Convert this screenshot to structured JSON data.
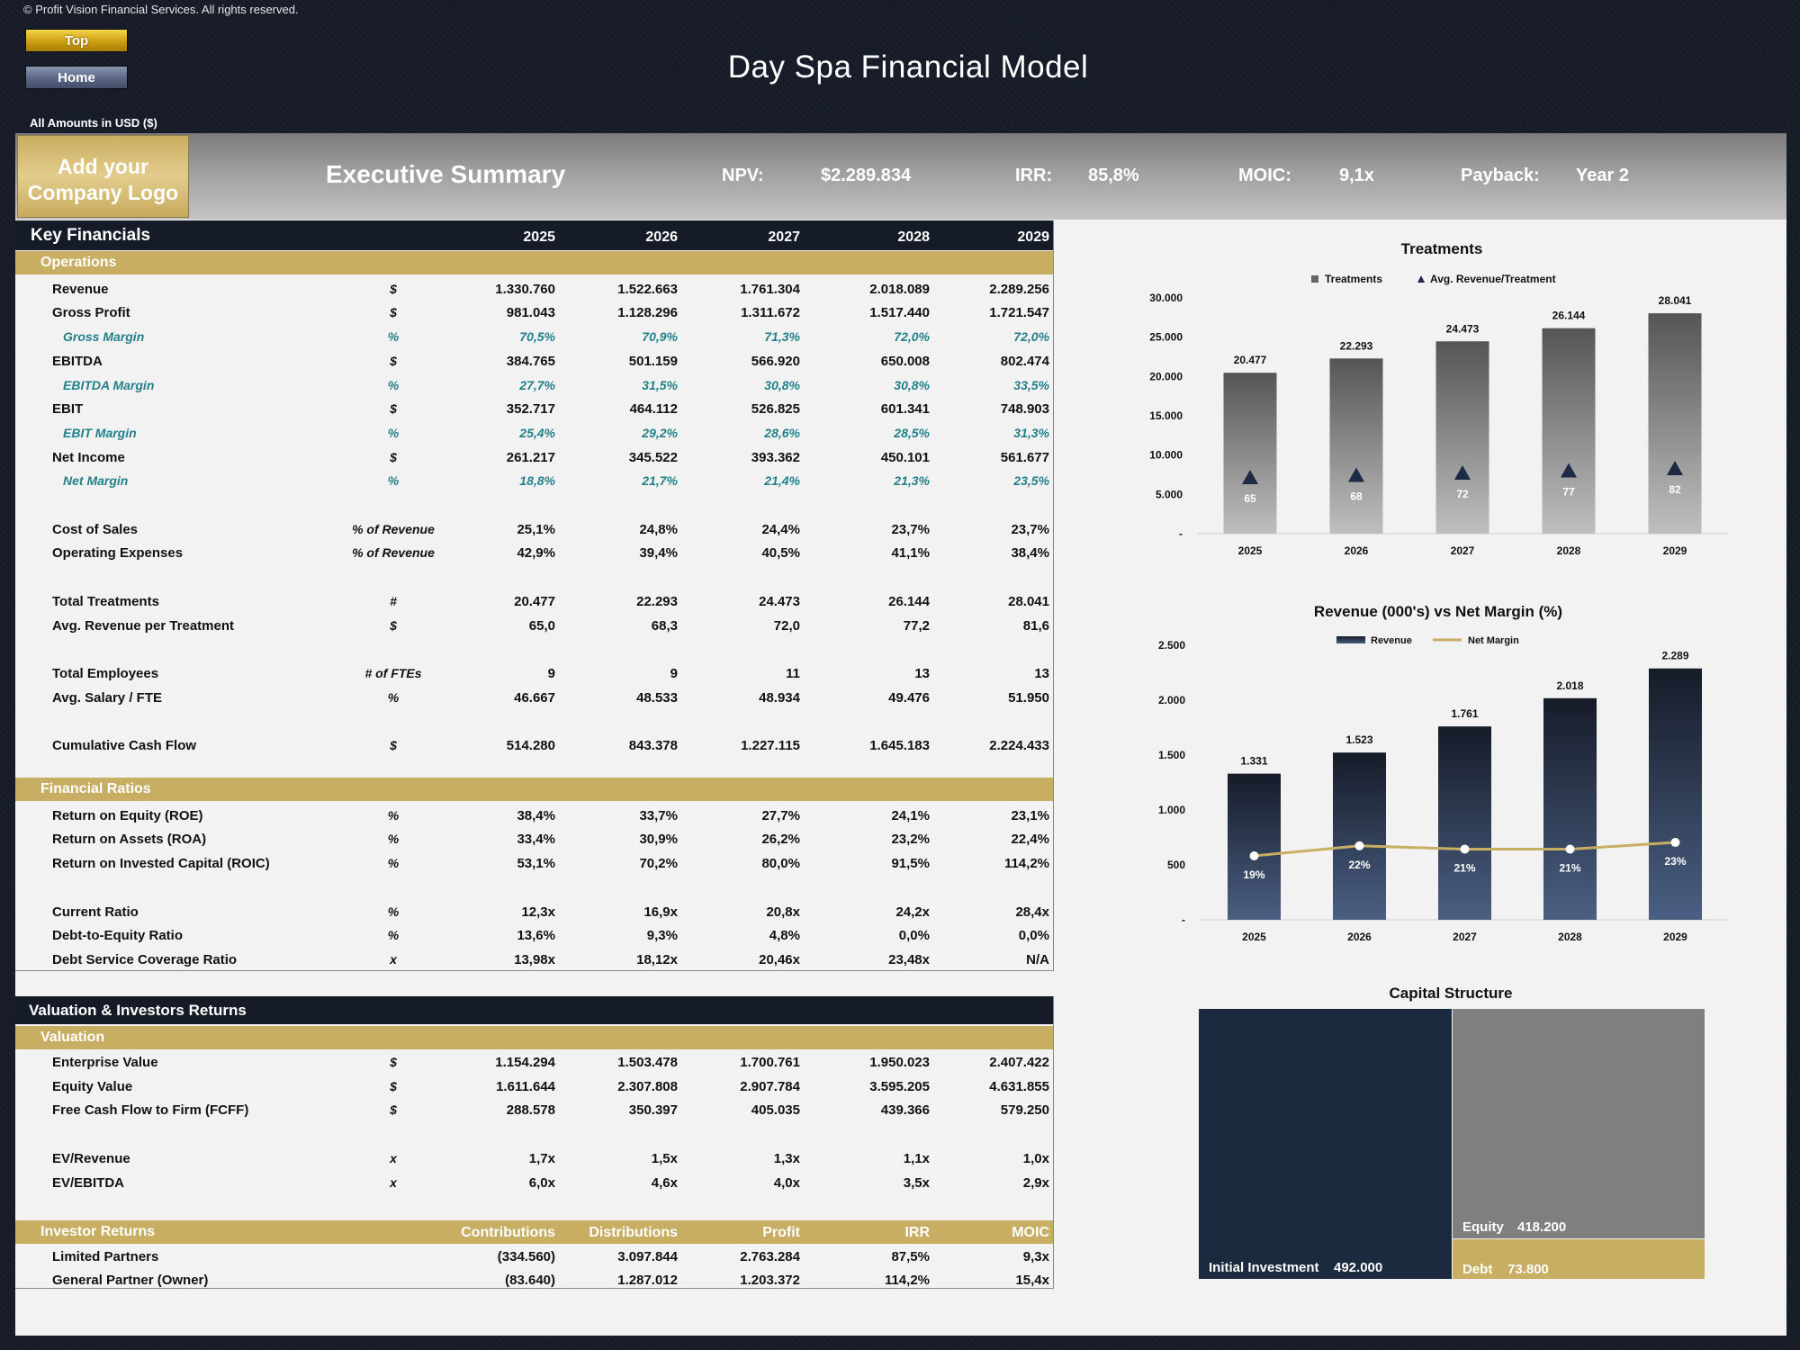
{
  "copyright": "© Profit Vision Financial Services. All rights reserved.",
  "nav": {
    "top_label": "Top",
    "home_label": "Home"
  },
  "title": "Day Spa Financial Model",
  "amounts_label": "All Amounts in  USD ($)",
  "logo_text": [
    "Add your",
    "Company Logo"
  ],
  "executive_summary": {
    "title": "Executive Summary",
    "kpis": [
      {
        "label": "NPV:",
        "value": "$2.289.834"
      },
      {
        "label": "IRR:",
        "value": "85,8%"
      },
      {
        "label": "MOIC:",
        "value": "9,1x"
      },
      {
        "label": "Payback:",
        "value": "Year 2"
      }
    ]
  },
  "key_financials": {
    "title": "Key Financials",
    "years": [
      "2025",
      "2026",
      "2027",
      "2028",
      "2029"
    ],
    "sections": [
      {
        "name": "Operations",
        "rows": [
          {
            "label": "Revenue",
            "unit": "$",
            "values": [
              "1.330.760",
              "1.522.663",
              "1.761.304",
              "2.018.089",
              "2.289.256"
            ]
          },
          {
            "label": "Gross Profit",
            "unit": "$",
            "values": [
              "981.043",
              "1.128.296",
              "1.311.672",
              "1.517.440",
              "1.721.547"
            ]
          },
          {
            "label": "Gross Margin",
            "unit": "%",
            "pct": true,
            "values": [
              "70,5%",
              "70,9%",
              "71,3%",
              "72,0%",
              "72,0%"
            ]
          },
          {
            "label": "EBITDA",
            "unit": "$",
            "values": [
              "384.765",
              "501.159",
              "566.920",
              "650.008",
              "802.474"
            ]
          },
          {
            "label": "EBITDA Margin",
            "unit": "%",
            "pct": true,
            "values": [
              "27,7%",
              "31,5%",
              "30,8%",
              "30,8%",
              "33,5%"
            ]
          },
          {
            "label": "EBIT",
            "unit": "$",
            "values": [
              "352.717",
              "464.112",
              "526.825",
              "601.341",
              "748.903"
            ]
          },
          {
            "label": "EBIT Margin",
            "unit": "%",
            "pct": true,
            "values": [
              "25,4%",
              "29,2%",
              "28,6%",
              "28,5%",
              "31,3%"
            ]
          },
          {
            "label": "Net Income",
            "unit": "$",
            "values": [
              "261.217",
              "345.522",
              "393.362",
              "450.101",
              "561.677"
            ]
          },
          {
            "label": "Net Margin",
            "unit": "%",
            "pct": true,
            "values": [
              "18,8%",
              "21,7%",
              "21,4%",
              "21,3%",
              "23,5%"
            ]
          },
          null,
          {
            "label": "Cost of Sales",
            "unit": "% of Revenue",
            "values": [
              "25,1%",
              "24,8%",
              "24,4%",
              "23,7%",
              "23,7%"
            ]
          },
          {
            "label": "Operating Expenses",
            "unit": "% of Revenue",
            "values": [
              "42,9%",
              "39,4%",
              "40,5%",
              "41,1%",
              "38,4%"
            ]
          },
          null,
          {
            "label": "Total Treatments",
            "unit": "#",
            "values": [
              "20.477",
              "22.293",
              "24.473",
              "26.144",
              "28.041"
            ]
          },
          {
            "label": "Avg. Revenue per Treatment",
            "unit": "$",
            "values": [
              "65,0",
              "68,3",
              "72,0",
              "77,2",
              "81,6"
            ]
          },
          null,
          {
            "label": "Total Employees",
            "unit": "# of FTEs",
            "values": [
              "9",
              "9",
              "11",
              "13",
              "13"
            ]
          },
          {
            "label": "Avg. Salary / FTE",
            "unit": "%",
            "values": [
              "46.667",
              "48.533",
              "48.934",
              "49.476",
              "51.950"
            ]
          },
          null,
          {
            "label": "Cumulative Cash Flow",
            "unit": "$",
            "values": [
              "514.280",
              "843.378",
              "1.227.115",
              "1.645.183",
              "2.224.433"
            ]
          }
        ]
      },
      {
        "name": "Financial Ratios",
        "rows": [
          {
            "label": "Return on Equity (ROE)",
            "unit": "%",
            "values": [
              "38,4%",
              "33,7%",
              "27,7%",
              "24,1%",
              "23,1%"
            ]
          },
          {
            "label": "Return on Assets (ROA)",
            "unit": "%",
            "values": [
              "33,4%",
              "30,9%",
              "26,2%",
              "23,2%",
              "22,4%"
            ]
          },
          {
            "label": "Return on Invested Capital (ROIC)",
            "unit": "%",
            "values": [
              "53,1%",
              "70,2%",
              "80,0%",
              "91,5%",
              "114,2%"
            ]
          },
          null,
          {
            "label": "Current Ratio",
            "unit": "%",
            "values": [
              "12,3x",
              "16,9x",
              "20,8x",
              "24,2x",
              "28,4x"
            ]
          },
          {
            "label": "Debt-to-Equity Ratio",
            "unit": "%",
            "values": [
              "13,6%",
              "9,3%",
              "4,8%",
              "0,0%",
              "0,0%"
            ]
          },
          {
            "label": "Debt Service Coverage Ratio",
            "unit": "x",
            "values": [
              "13,98x",
              "18,12x",
              "20,46x",
              "23,48x",
              "N/A"
            ]
          }
        ]
      }
    ]
  },
  "valuation": {
    "title": "Valuation & Investors Returns",
    "section": "Valuation",
    "rows": [
      {
        "label": "Enterprise Value",
        "unit": "$",
        "values": [
          "1.154.294",
          "1.503.478",
          "1.700.761",
          "1.950.023",
          "2.407.422"
        ]
      },
      {
        "label": "Equity Value",
        "unit": "$",
        "values": [
          "1.611.644",
          "2.307.808",
          "2.907.784",
          "3.595.205",
          "4.631.855"
        ]
      },
      {
        "label": "Free Cash Flow to Firm (FCFF)",
        "unit": "$",
        "values": [
          "288.578",
          "350.397",
          "405.035",
          "439.366",
          "579.250"
        ]
      },
      null,
      {
        "label": "EV/Revenue",
        "unit": "x",
        "values": [
          "1,7x",
          "1,5x",
          "1,3x",
          "1,1x",
          "1,0x"
        ]
      },
      {
        "label": "EV/EBITDA",
        "unit": "x",
        "values": [
          "6,0x",
          "4,6x",
          "4,0x",
          "3,5x",
          "2,9x"
        ]
      }
    ],
    "investor_section": "Investor Returns",
    "investor_headers": [
      "Contributions",
      "Distributions",
      "Profit",
      "IRR",
      "MOIC"
    ],
    "investor_rows": [
      {
        "label": "Limited Partners",
        "values": [
          "(334.560)",
          "3.097.844",
          "2.763.284",
          "87,5%",
          "9,3x"
        ]
      },
      {
        "label": "General Partner (Owner)",
        "values": [
          "(83.640)",
          "1.287.012",
          "1.203.372",
          "114,2%",
          "15,4x"
        ]
      }
    ]
  },
  "chart_data": [
    {
      "type": "bar",
      "title": "Treatments",
      "legend": [
        "Treatments",
        "Avg. Revenue/Treatment"
      ],
      "legend_position": "top",
      "categories": [
        "2025",
        "2026",
        "2027",
        "2028",
        "2029"
      ],
      "series": [
        {
          "name": "Treatments",
          "values": [
            20477,
            22293,
            24473,
            26144,
            28041
          ],
          "labels": [
            "20.477",
            "22.293",
            "24.473",
            "26.144",
            "28.041"
          ]
        },
        {
          "name": "Avg. Revenue/Treatment",
          "values": [
            65,
            68,
            72,
            77,
            82
          ],
          "labels": [
            "65",
            "68",
            "72",
            "77",
            "82"
          ]
        }
      ],
      "ylim": [
        0,
        30000
      ],
      "yticks": [
        "-",
        "5.000",
        "10.000",
        "15.000",
        "20.000",
        "25.000",
        "30.000"
      ],
      "colors": {
        "bar_top": "#555555",
        "bar_bottom": "#bfbfbf",
        "marker": "#1d2a44"
      }
    },
    {
      "type": "bar",
      "title": "Revenue (000's) vs Net Margin (%)",
      "legend": [
        "Revenue",
        "Net Margin"
      ],
      "legend_position": "top",
      "categories": [
        "2025",
        "2026",
        "2027",
        "2028",
        "2029"
      ],
      "series": [
        {
          "name": "Revenue",
          "values": [
            1331,
            1523,
            1761,
            2018,
            2289
          ],
          "labels": [
            "1.331",
            "1.523",
            "1.761",
            "2.018",
            "2.289"
          ]
        },
        {
          "name": "Net Margin",
          "values": [
            19,
            22,
            21,
            21,
            23
          ],
          "labels": [
            "19%",
            "22%",
            "21%",
            "21%",
            "23%"
          ]
        }
      ],
      "ylim": [
        0,
        2500
      ],
      "yticks": [
        "-",
        "500",
        "1.000",
        "1.500",
        "2.000",
        "2.500"
      ],
      "colors": {
        "bar_top": "#161b28",
        "bar_bottom": "#4a5f82",
        "line": "#c8ae63"
      }
    },
    {
      "type": "treemap",
      "title": "Capital Structure",
      "items": [
        {
          "label": "Initial Investment",
          "value": 492000,
          "display": "492.000",
          "color": "#1c2a40"
        },
        {
          "label": "Equity",
          "value": 418200,
          "display": "418.200",
          "color": "#7f7f7f"
        },
        {
          "label": "Debt",
          "value": 73800,
          "display": "73.800",
          "color": "#c8ae63"
        }
      ]
    }
  ]
}
